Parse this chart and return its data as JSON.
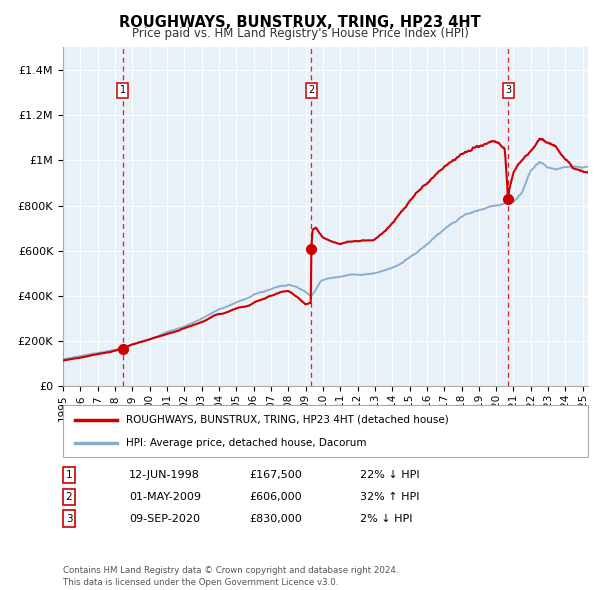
{
  "title": "ROUGHWAYS, BUNSTRUX, TRING, HP23 4HT",
  "subtitle": "Price paid vs. HM Land Registry's House Price Index (HPI)",
  "xlim": [
    1995.0,
    2025.3
  ],
  "ylim": [
    0,
    1500000
  ],
  "yticks": [
    0,
    200000,
    400000,
    600000,
    800000,
    1000000,
    1200000,
    1400000
  ],
  "ytick_labels": [
    "£0",
    "£200K",
    "£400K",
    "£600K",
    "£800K",
    "£1M",
    "£1.2M",
    "£1.4M"
  ],
  "xtick_years": [
    1995,
    1996,
    1997,
    1998,
    1999,
    2000,
    2001,
    2002,
    2003,
    2004,
    2005,
    2006,
    2007,
    2008,
    2009,
    2010,
    2011,
    2012,
    2013,
    2014,
    2015,
    2016,
    2017,
    2018,
    2019,
    2020,
    2021,
    2022,
    2023,
    2024,
    2025
  ],
  "sale_dates": [
    1998.45,
    2009.33,
    2020.69
  ],
  "sale_prices": [
    167500,
    606000,
    830000
  ],
  "sale_labels": [
    "1",
    "2",
    "3"
  ],
  "red_line_color": "#cc0000",
  "blue_line_color": "#88aacc",
  "background_color": "#e8f0f8",
  "grid_color": "#ffffff",
  "sale_marker_color": "#cc0000",
  "vline_color": "#cc0000",
  "legend_entries": [
    "ROUGHWAYS, BUNSTRUX, TRING, HP23 4HT (detached house)",
    "HPI: Average price, detached house, Dacorum"
  ],
  "table_rows": [
    {
      "num": "1",
      "date": "12-JUN-1998",
      "price": "£167,500",
      "hpi": "22% ↓ HPI"
    },
    {
      "num": "2",
      "date": "01-MAY-2009",
      "price": "£606,000",
      "hpi": "32% ↑ HPI"
    },
    {
      "num": "3",
      "date": "09-SEP-2020",
      "price": "£830,000",
      "hpi": "2% ↓ HPI"
    }
  ],
  "footer": "Contains HM Land Registry data © Crown copyright and database right 2024.\nThis data is licensed under the Open Government Licence v3.0."
}
